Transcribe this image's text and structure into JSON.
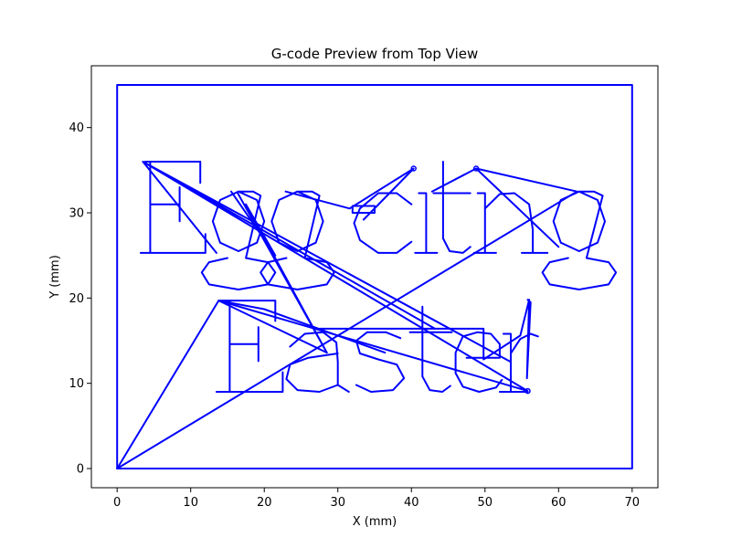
{
  "chart_data": {
    "type": "line",
    "title": "G-code Preview from Top View",
    "xlabel": "X (mm)",
    "ylabel": "Y (mm)",
    "xlim": [
      -3.5,
      73.5
    ],
    "ylim": [
      -2.25,
      47.25
    ],
    "xticks": [
      0,
      10,
      20,
      30,
      40,
      50,
      60,
      70
    ],
    "yticks": [
      0,
      10,
      20,
      30,
      40
    ],
    "grid": false,
    "line_color": "#0000ff",
    "series": [
      {
        "values": [
          [
            0,
            0
          ],
          [
            70,
            0
          ],
          [
            70,
            45
          ],
          [
            0,
            45
          ],
          [
            0,
            0
          ]
        ]
      },
      {
        "values": [
          [
            0,
            0
          ],
          [
            13.8,
            19.7
          ],
          [
            28.5,
            13.6
          ],
          [
            13.8,
            19.7
          ],
          [
            55.8,
            9.1
          ],
          [
            3.5,
            36
          ],
          [
            13.5,
            25.3
          ],
          [
            3.5,
            36
          ],
          [
            43.2,
            16.4
          ],
          [
            3.5,
            36
          ],
          [
            46.5,
            15.8
          ],
          [
            3.5,
            36
          ],
          [
            53.5,
            12.5
          ]
        ]
      },
      {
        "values": [
          [
            0,
            0
          ],
          [
            62.5,
            32.5
          ],
          [
            48.8,
            35.2
          ],
          [
            42.8,
            32.5
          ],
          [
            48.8,
            35.2
          ],
          [
            60.0,
            26.0
          ]
        ]
      },
      {
        "values": [
          [
            22.9,
            32.5
          ],
          [
            31.6,
            30.5
          ],
          [
            40.3,
            35.2
          ],
          [
            33.5,
            29.2
          ]
        ]
      },
      {
        "values": [
          [
            15.5,
            32.5
          ],
          [
            21.5,
            25.0
          ],
          [
            17.5,
            31.0
          ],
          [
            28.5,
            13.6
          ],
          [
            16.4,
            32.3
          ]
        ]
      },
      {
        "values": [
          [
            27.5,
            16.4
          ],
          [
            49.8,
            16.4
          ],
          [
            49.8,
            12.8
          ],
          [
            54.8,
            15.6
          ],
          [
            56.0,
            19.8
          ]
        ]
      },
      {
        "values": [
          [
            13.8,
            19.7
          ],
          [
            20.0,
            18.7
          ],
          [
            36.4,
            13.6
          ]
        ]
      },
      {
        "values": [
          [
            3.8,
            36.0
          ],
          [
            11.3,
            36.0
          ],
          [
            11.3,
            33.5
          ],
          [
            11.3,
            36.0
          ],
          [
            4.5,
            36.0
          ],
          [
            4.5,
            25.3
          ],
          [
            3.2,
            25.3
          ],
          [
            12.0,
            25.3
          ],
          [
            12.0,
            27.5
          ],
          [
            12.0,
            25.3
          ],
          [
            4.5,
            25.3
          ],
          [
            4.5,
            31.0
          ],
          [
            8.5,
            31.0
          ],
          [
            8.5,
            29.0
          ],
          [
            8.5,
            33.0
          ],
          [
            8.5,
            31.0
          ],
          [
            4.5,
            31.0
          ]
        ]
      },
      {
        "values": [
          [
            16.5,
            32.5
          ],
          [
            19.0,
            31.5
          ],
          [
            20.0,
            29.0
          ],
          [
            19.0,
            26.5
          ],
          [
            16.5,
            25.5
          ],
          [
            14.0,
            26.5
          ],
          [
            13.0,
            29.0
          ],
          [
            14.0,
            31.5
          ],
          [
            16.5,
            32.5
          ],
          [
            18.5,
            32.5
          ],
          [
            19.5,
            32.0
          ],
          [
            17.5,
            24.7
          ],
          [
            20.5,
            24.2
          ],
          [
            21.5,
            23.0
          ],
          [
            20.5,
            21.6
          ],
          [
            16.5,
            21.0
          ],
          [
            12.5,
            21.6
          ],
          [
            11.5,
            23.0
          ],
          [
            12.5,
            24.2
          ],
          [
            15.0,
            24.7
          ]
        ]
      },
      {
        "values": [
          [
            24.5,
            32.5
          ],
          [
            27.0,
            31.5
          ],
          [
            28.0,
            29.0
          ],
          [
            27.0,
            26.5
          ],
          [
            24.5,
            25.5
          ],
          [
            22.0,
            26.5
          ],
          [
            21.0,
            29.0
          ],
          [
            22.0,
            31.5
          ],
          [
            24.5,
            32.5
          ],
          [
            26.5,
            32.5
          ],
          [
            27.5,
            32.0
          ],
          [
            25.5,
            24.7
          ],
          [
            28.5,
            24.2
          ],
          [
            29.5,
            23.0
          ],
          [
            28.5,
            21.6
          ],
          [
            24.5,
            21.0
          ],
          [
            20.5,
            21.6
          ],
          [
            19.5,
            23.0
          ],
          [
            20.5,
            24.2
          ],
          [
            23.0,
            24.7
          ]
        ]
      },
      {
        "values": [
          [
            32.0,
            30.0
          ],
          [
            35.0,
            30.0
          ],
          [
            35.0,
            30.8
          ],
          [
            32.0,
            30.8
          ],
          [
            32.0,
            30.0
          ]
        ]
      },
      {
        "values": [
          [
            40.0,
            31.0
          ],
          [
            38.0,
            32.3
          ],
          [
            35.5,
            32.3
          ],
          [
            33.0,
            30.5
          ],
          [
            32.2,
            28.8
          ],
          [
            33.0,
            26.8
          ],
          [
            35.5,
            25.3
          ],
          [
            38.0,
            25.3
          ],
          [
            40.0,
            26.6
          ]
        ]
      },
      {
        "values": [
          [
            41.0,
            32.3
          ],
          [
            42.0,
            32.3
          ],
          [
            42.0,
            25.3
          ],
          [
            40.5,
            25.3
          ],
          [
            43.5,
            25.3
          ]
        ]
      },
      {
        "values": [
          [
            44.3,
            36.0
          ],
          [
            44.3,
            27.0
          ],
          [
            45.2,
            25.5
          ],
          [
            47.0,
            25.3
          ],
          [
            48.0,
            26.0
          ]
        ]
      },
      {
        "values": [
          [
            43.0,
            32.3
          ],
          [
            48.0,
            32.3
          ]
        ]
      },
      {
        "values": [
          [
            49.0,
            32.3
          ],
          [
            50.0,
            32.3
          ],
          [
            50.0,
            25.3
          ],
          [
            48.5,
            25.3
          ],
          [
            51.5,
            25.3
          ]
        ]
      },
      {
        "values": [
          [
            50.0,
            30.5
          ],
          [
            52.0,
            32.2
          ],
          [
            54.0,
            32.3
          ],
          [
            56.0,
            31.0
          ],
          [
            56.5,
            28.0
          ],
          [
            56.5,
            25.3
          ],
          [
            55.0,
            25.3
          ],
          [
            58.5,
            25.3
          ]
        ]
      },
      {
        "values": [
          [
            62.8,
            32.5
          ],
          [
            65.3,
            31.5
          ],
          [
            66.3,
            29.0
          ],
          [
            65.3,
            26.5
          ],
          [
            62.8,
            25.5
          ],
          [
            60.3,
            26.5
          ],
          [
            59.3,
            29.0
          ],
          [
            60.3,
            31.5
          ],
          [
            62.8,
            32.5
          ],
          [
            64.8,
            32.5
          ],
          [
            66.0,
            32.0
          ],
          [
            63.8,
            24.7
          ],
          [
            66.8,
            24.2
          ],
          [
            67.8,
            23.0
          ],
          [
            66.8,
            21.6
          ],
          [
            62.8,
            21.0
          ],
          [
            58.8,
            21.6
          ],
          [
            57.8,
            23.0
          ],
          [
            58.8,
            24.2
          ],
          [
            61.3,
            24.7
          ]
        ]
      },
      {
        "values": [
          [
            14.0,
            19.7
          ],
          [
            21.5,
            19.7
          ],
          [
            21.5,
            17.3
          ],
          [
            21.5,
            19.7
          ],
          [
            15.3,
            19.7
          ],
          [
            15.3,
            9.0
          ],
          [
            13.5,
            9.0
          ],
          [
            22.5,
            9.0
          ],
          [
            22.5,
            11.3
          ],
          [
            22.5,
            9.0
          ],
          [
            15.3,
            9.0
          ],
          [
            15.3,
            14.6
          ],
          [
            19.2,
            14.6
          ],
          [
            19.2,
            12.6
          ],
          [
            19.2,
            16.6
          ],
          [
            19.2,
            14.6
          ],
          [
            15.3,
            14.6
          ]
        ]
      },
      {
        "values": [
          [
            23.5,
            14.3
          ],
          [
            25.5,
            15.8
          ],
          [
            28.0,
            16.0
          ],
          [
            29.8,
            14.8
          ],
          [
            30.0,
            12.5
          ],
          [
            30.0,
            9.8
          ],
          [
            31.5,
            9.0
          ],
          [
            30.0,
            9.8
          ],
          [
            27.5,
            9.0
          ],
          [
            24.5,
            9.2
          ],
          [
            23.0,
            10.5
          ],
          [
            23.5,
            12.2
          ],
          [
            26.0,
            13.0
          ],
          [
            30.0,
            13.5
          ]
        ]
      },
      {
        "values": [
          [
            38.5,
            15.3
          ],
          [
            36.5,
            16.0
          ],
          [
            34.0,
            16.0
          ],
          [
            32.5,
            15.0
          ],
          [
            33.0,
            13.5
          ],
          [
            35.5,
            12.8
          ],
          [
            38.0,
            12.2
          ],
          [
            39.0,
            10.6
          ],
          [
            37.5,
            9.2
          ],
          [
            34.5,
            9.0
          ],
          [
            32.5,
            9.8
          ]
        ]
      },
      {
        "values": [
          [
            41.5,
            19.0
          ],
          [
            41.5,
            10.8
          ],
          [
            42.5,
            9.2
          ],
          [
            44.2,
            9.0
          ],
          [
            45.3,
            9.7
          ]
        ]
      },
      {
        "values": [
          [
            39.8,
            16.0
          ],
          [
            45.5,
            16.0
          ]
        ]
      },
      {
        "values": [
          [
            47.5,
            13.0
          ],
          [
            52.0,
            13.0
          ],
          [
            52.0,
            14.6
          ],
          [
            50.8,
            15.8
          ],
          [
            49.0,
            16.0
          ],
          [
            47.0,
            15.5
          ],
          [
            46.0,
            13.6
          ],
          [
            46.0,
            11.2
          ],
          [
            47.0,
            9.6
          ],
          [
            49.2,
            9.0
          ],
          [
            51.5,
            9.5
          ],
          [
            52.3,
            10.4
          ]
        ]
      },
      {
        "values": [
          [
            52.5,
            15.8
          ],
          [
            53.5,
            15.8
          ],
          [
            53.5,
            9.0
          ],
          [
            52.0,
            9.0
          ],
          [
            55.8,
            9.0
          ]
        ]
      },
      {
        "values": [
          [
            53.5,
            13.5
          ],
          [
            54.8,
            15.2
          ],
          [
            56.2,
            15.8
          ],
          [
            57.2,
            15.5
          ]
        ]
      },
      {
        "values": [
          [
            55.8,
            19.8
          ],
          [
            56.2,
            19.5
          ],
          [
            55.7,
            10.6
          ],
          [
            56.0,
            19.8
          ]
        ]
      }
    ],
    "markers": [
      [
        40.3,
        35.2
      ],
      [
        48.8,
        35.2
      ],
      [
        55.8,
        9.1
      ]
    ]
  }
}
